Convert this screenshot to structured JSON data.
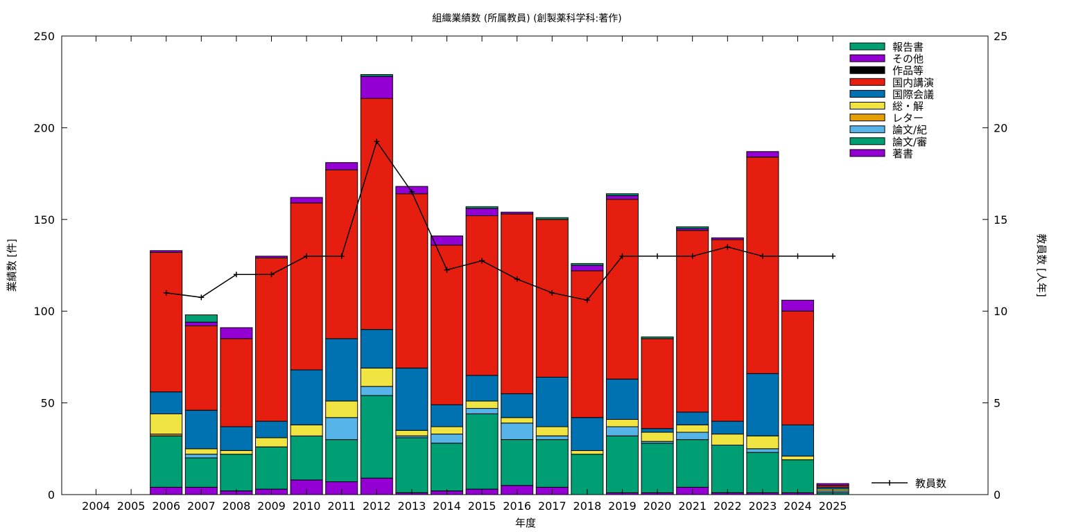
{
  "chart_data": {
    "type": "bar",
    "title": "組織業績数 (所属教員) (創製薬科学科:著作)",
    "xlabel": "年度",
    "ylabel": "業績数 [件]",
    "y2label": "教員数 [人年]",
    "ylim": [
      0,
      250
    ],
    "y2lim": [
      0,
      25
    ],
    "yticks": [
      0,
      50,
      100,
      150,
      200,
      250
    ],
    "y2ticks": [
      0,
      5,
      10,
      15,
      20,
      25
    ],
    "legend_position": "top-right",
    "grid": false,
    "categories": [
      "2004",
      "2005",
      "2006",
      "2007",
      "2008",
      "2009",
      "2010",
      "2011",
      "2012",
      "2013",
      "2014",
      "2015",
      "2016",
      "2017",
      "2018",
      "2019",
      "2020",
      "2021",
      "2022",
      "2023",
      "2024",
      "2025"
    ],
    "series": [
      {
        "name": "著書",
        "color": "#9400d3",
        "values": [
          0,
          0,
          4,
          4,
          2,
          3,
          8,
          7,
          9,
          1,
          2,
          3,
          5,
          4,
          0,
          1,
          1,
          4,
          1,
          1,
          1,
          0
        ]
      },
      {
        "name": "論文/審",
        "color": "#009e73",
        "values": [
          0,
          0,
          28,
          16,
          20,
          23,
          24,
          23,
          45,
          30,
          26,
          41,
          25,
          26,
          22,
          31,
          27,
          26,
          26,
          22,
          18,
          1
        ]
      },
      {
        "name": "論文/紀",
        "color": "#56b4e9",
        "values": [
          0,
          0,
          0,
          2,
          0,
          0,
          0,
          12,
          5,
          1,
          5,
          3,
          9,
          2,
          0,
          5,
          1,
          4,
          0,
          2,
          0,
          1
        ]
      },
      {
        "name": "レター",
        "color": "#e69f00",
        "values": [
          0,
          0,
          1,
          0,
          0,
          0,
          0,
          0,
          0,
          0,
          0,
          0,
          0,
          0,
          0,
          0,
          0,
          0,
          0,
          0,
          0,
          0
        ]
      },
      {
        "name": "総・解",
        "color": "#f0e442",
        "values": [
          0,
          0,
          11,
          3,
          2,
          5,
          6,
          9,
          10,
          3,
          4,
          4,
          3,
          5,
          2,
          4,
          5,
          4,
          6,
          7,
          2,
          1
        ]
      },
      {
        "name": "国際会議",
        "color": "#0072b2",
        "values": [
          0,
          0,
          12,
          21,
          13,
          9,
          30,
          34,
          21,
          34,
          12,
          14,
          13,
          27,
          18,
          22,
          2,
          7,
          7,
          34,
          17,
          1
        ]
      },
      {
        "name": "国内講演",
        "color": "#e51e10",
        "values": [
          0,
          0,
          76,
          46,
          48,
          89,
          91,
          92,
          126,
          95,
          87,
          87,
          98,
          86,
          80,
          98,
          49,
          99,
          99,
          118,
          62,
          1
        ]
      },
      {
        "name": "作品等",
        "color": "#000000",
        "values": [
          0,
          0,
          0,
          0,
          0,
          0,
          0,
          0,
          0,
          0,
          0,
          0,
          0,
          0,
          0,
          0,
          0,
          0,
          0,
          0,
          0,
          0
        ]
      },
      {
        "name": "その他",
        "color": "#9400d3",
        "values": [
          0,
          0,
          1,
          2,
          6,
          1,
          3,
          4,
          12,
          4,
          5,
          4,
          1,
          0,
          3,
          2,
          0,
          1,
          1,
          3,
          6,
          1
        ]
      },
      {
        "name": "報告書",
        "color": "#009e73",
        "values": [
          0,
          0,
          0,
          4,
          0,
          0,
          0,
          0,
          1,
          0,
          0,
          1,
          0,
          1,
          1,
          1,
          1,
          1,
          0,
          0,
          0,
          0
        ]
      }
    ],
    "line_series": {
      "name": "教員数",
      "color": "#000000",
      "axis": "y2",
      "x": [
        "2006",
        "2007",
        "2008",
        "2009",
        "2010",
        "2011",
        "2012",
        "2013",
        "2014",
        "2015",
        "2016",
        "2017",
        "2018",
        "2019",
        "2020",
        "2021",
        "2022",
        "2023",
        "2024",
        "2025"
      ],
      "values": [
        11,
        10.75,
        12,
        12,
        13,
        13,
        19.25,
        16.5,
        12.25,
        12.75,
        11.75,
        11,
        10.6,
        13,
        13,
        13,
        13.5,
        13,
        13,
        13
      ]
    }
  }
}
